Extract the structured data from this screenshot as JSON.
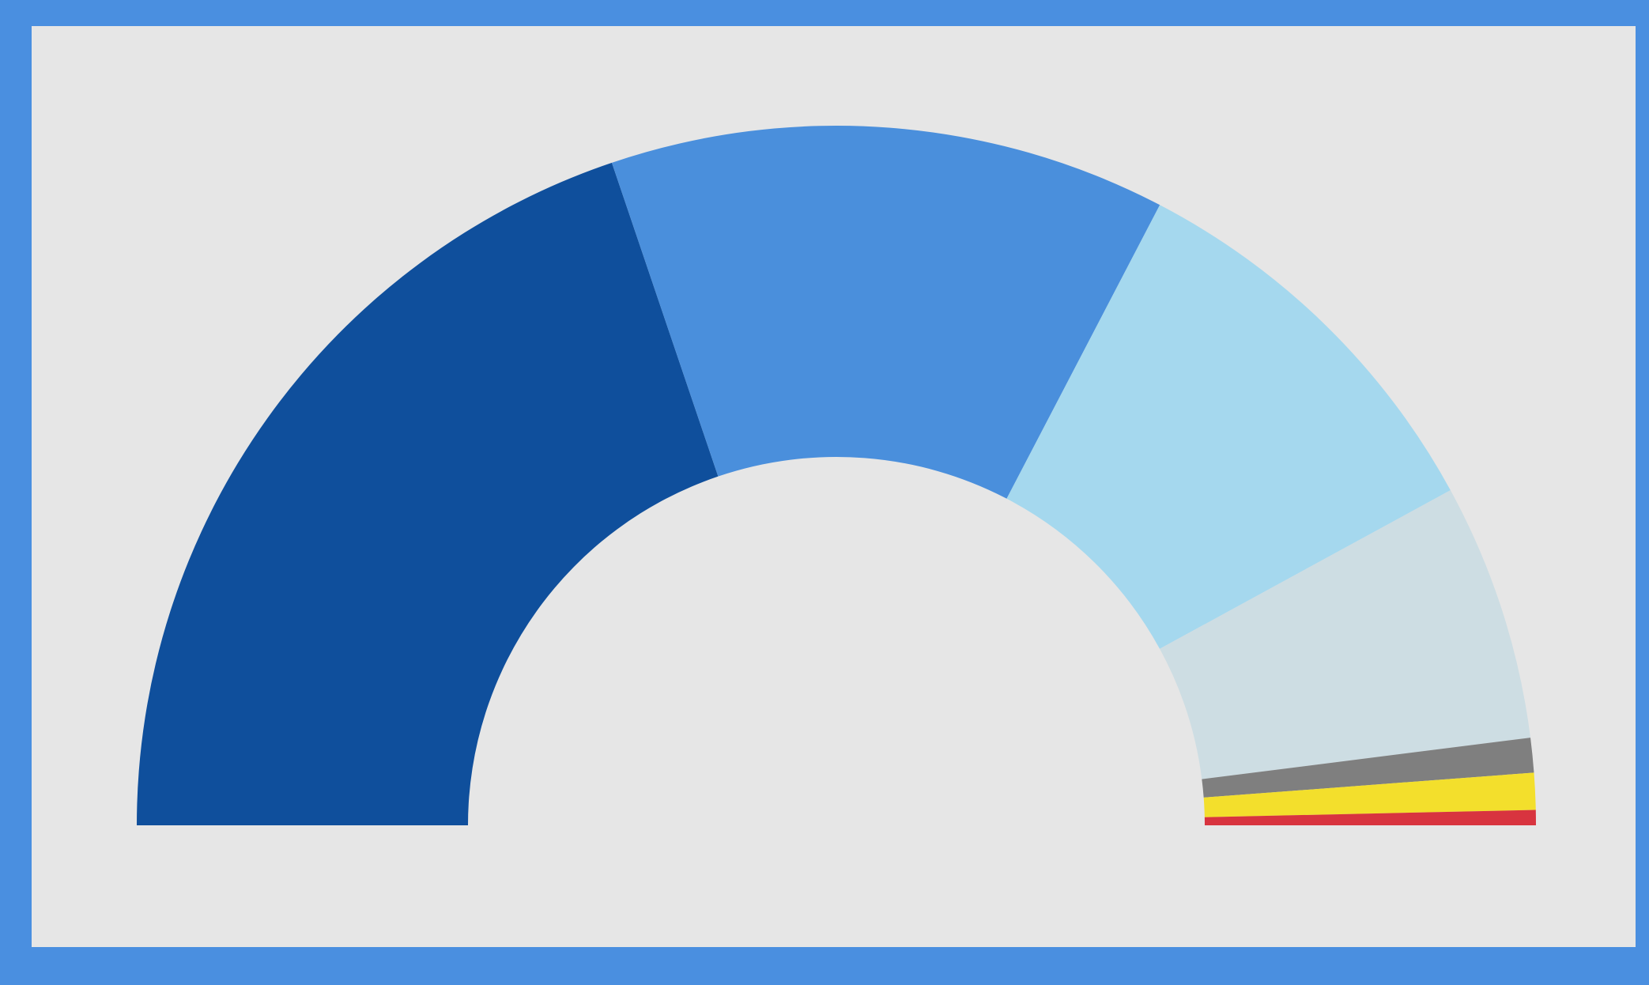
{
  "chart_data": {
    "type": "semi-donut",
    "values": [
      39.6,
      25.7,
      18.8,
      11.9,
      1.6,
      1.7,
      0.7
    ],
    "colors": [
      "#0f4f9c",
      "#4a8fdc",
      "#a5d8ee",
      "#cddde3",
      "#7f7f7f",
      "#f3df2c",
      "#d8343f"
    ]
  }
}
